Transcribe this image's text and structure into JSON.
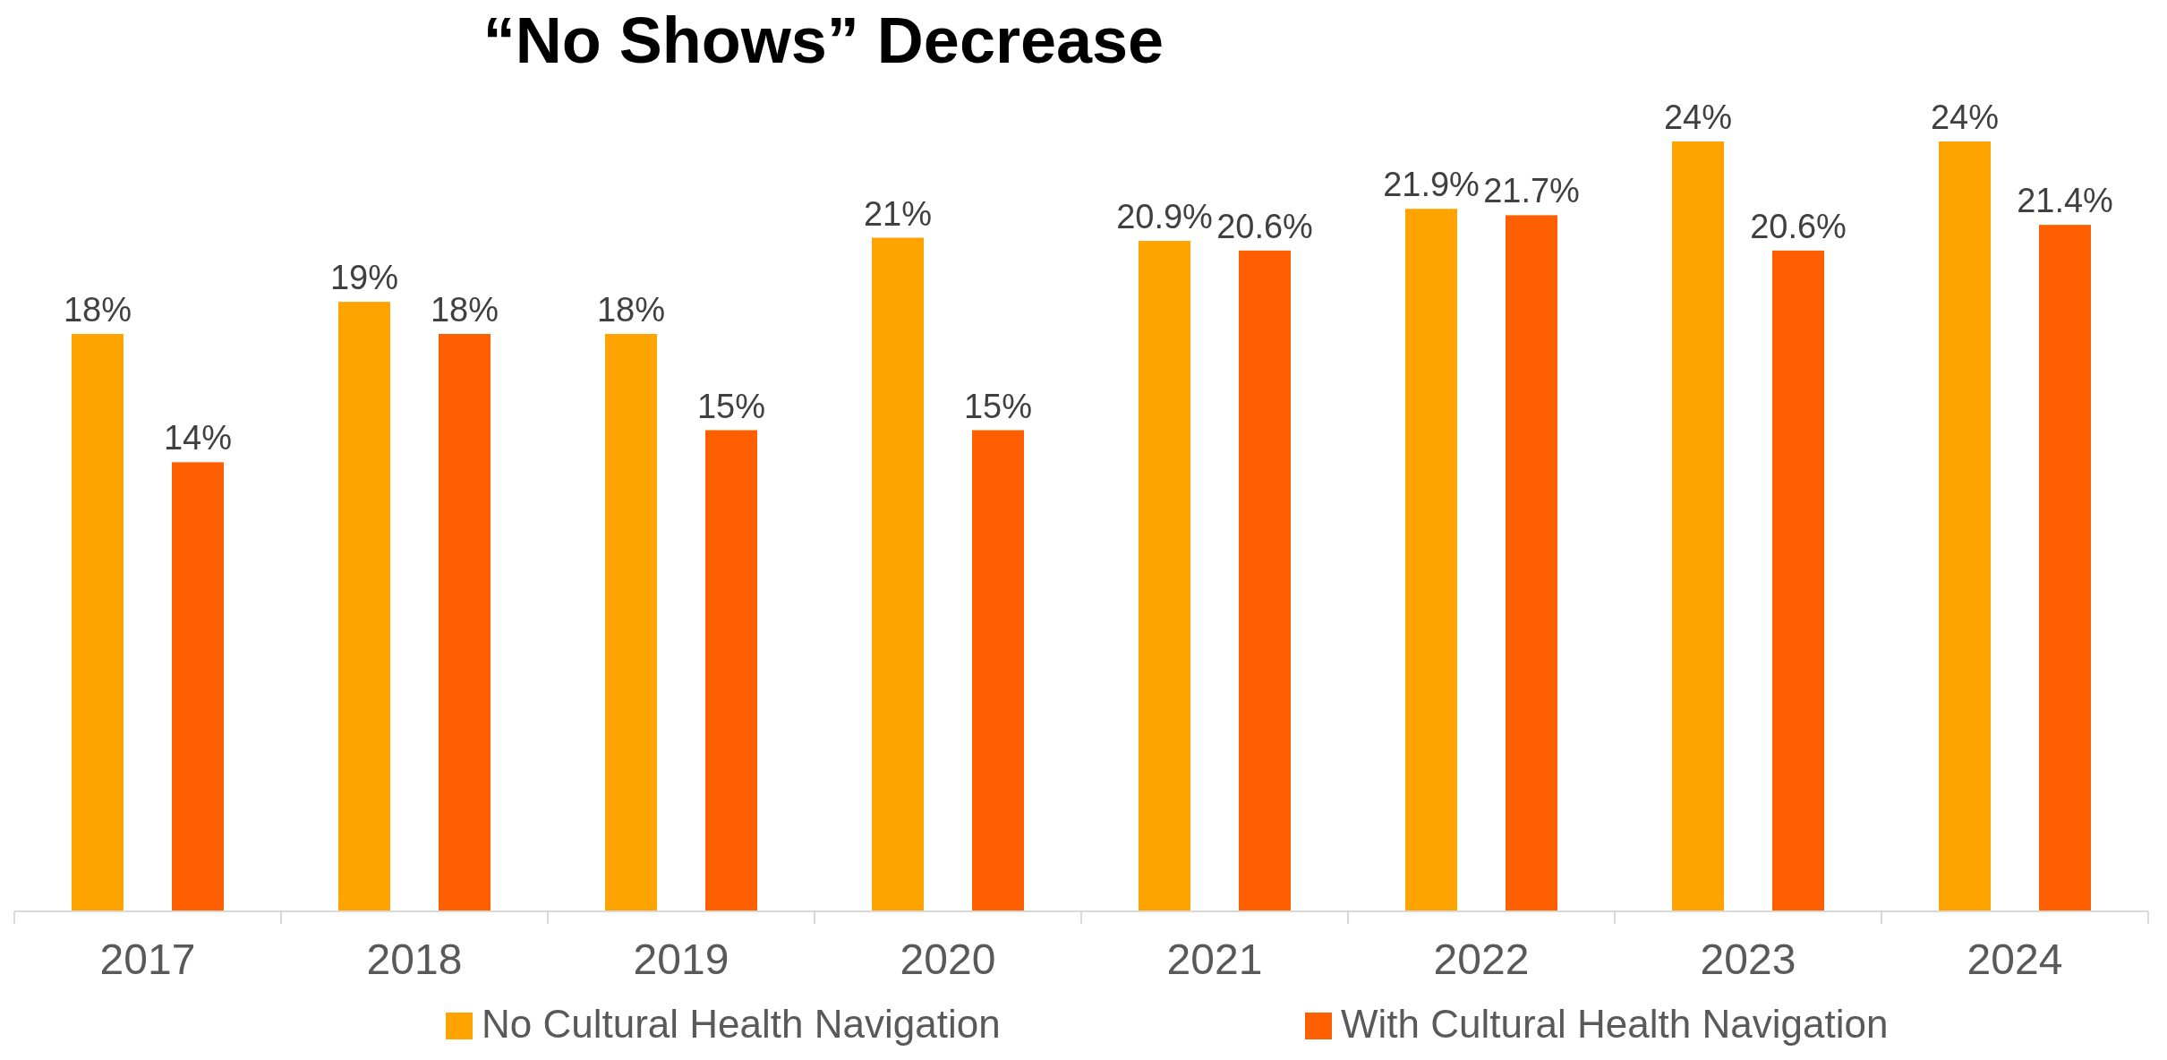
{
  "chart_data": {
    "type": "bar",
    "title": "“No Shows” Decrease",
    "categories": [
      "2017",
      "2018",
      "2019",
      "2020",
      "2021",
      "2022",
      "2023",
      "2024"
    ],
    "series": [
      {
        "name": "No Cultural Health Navigation",
        "color": "#ffa300",
        "values": [
          18,
          19,
          18,
          21,
          20.9,
          21.9,
          24,
          24
        ],
        "value_labels": [
          "18%",
          "19%",
          "18%",
          "21%",
          "20.9%",
          "21.9%",
          "24%",
          "24%"
        ]
      },
      {
        "name": "With Cultural Health Navigation",
        "color": "#ff5f00",
        "values": [
          14,
          18,
          15,
          15,
          20.6,
          21.7,
          20.6,
          21.4
        ],
        "value_labels": [
          "14%",
          "18%",
          "15%",
          "15%",
          "20.6%",
          "21.7%",
          "20.6%",
          "21.4%"
        ]
      }
    ],
    "legend": "bottom"
  }
}
